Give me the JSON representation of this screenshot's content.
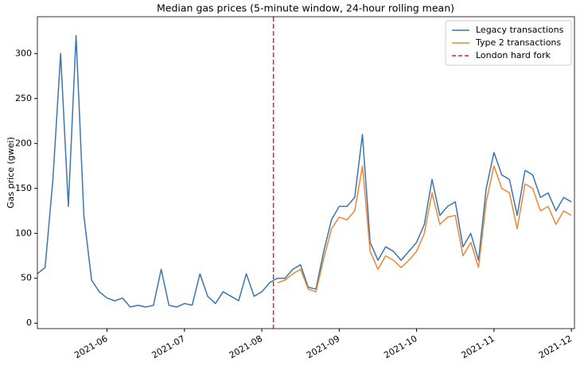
{
  "chart_data": {
    "type": "line",
    "title": "Median gas prices (5-minute window, 24-hour rolling mean)",
    "y_label": "Gas price (gwei)",
    "x": [
      5.1,
      5.2,
      5.3,
      5.4,
      5.5,
      5.6,
      5.7,
      5.8,
      5.9,
      6.0,
      6.1,
      6.2,
      6.3,
      6.4,
      6.5,
      6.6,
      6.7,
      6.8,
      6.9,
      7.0,
      7.1,
      7.2,
      7.3,
      7.4,
      7.5,
      7.6,
      7.7,
      7.8,
      7.9,
      8.0,
      8.1,
      8.2,
      8.3,
      8.4,
      8.5,
      8.6,
      8.7,
      8.8,
      8.9,
      9.0,
      9.1,
      9.2,
      9.3,
      9.4,
      9.5,
      9.6,
      9.7,
      9.8,
      9.9,
      10.0,
      10.1,
      10.2,
      10.3,
      10.4,
      10.5,
      10.6,
      10.7,
      10.8,
      10.9,
      11.0,
      11.1,
      11.2,
      11.3,
      11.4,
      11.5,
      11.6,
      11.7,
      11.8,
      11.9,
      12.0
    ],
    "series": [
      {
        "name": "Legacy transactions",
        "color": "#3a76af",
        "values": [
          55,
          62,
          160,
          300,
          130,
          320,
          120,
          48,
          35,
          28,
          25,
          28,
          18,
          20,
          18,
          20,
          60,
          20,
          18,
          22,
          20,
          55,
          30,
          22,
          35,
          30,
          25,
          55,
          30,
          35,
          45,
          50,
          50,
          60,
          65,
          40,
          38,
          80,
          115,
          130,
          130,
          140,
          210,
          90,
          70,
          85,
          80,
          70,
          80,
          90,
          110,
          160,
          120,
          130,
          135,
          85,
          100,
          70,
          150,
          190,
          165,
          160,
          120,
          170,
          165,
          140,
          145,
          125,
          140,
          135
        ]
      },
      {
        "name": "Type 2 transactions",
        "color": "#ef8636",
        "values": [
          null,
          null,
          null,
          null,
          null,
          null,
          null,
          null,
          null,
          null,
          null,
          null,
          null,
          null,
          null,
          null,
          null,
          null,
          null,
          null,
          null,
          null,
          null,
          null,
          null,
          null,
          null,
          null,
          null,
          null,
          null,
          45,
          48,
          55,
          60,
          38,
          35,
          72,
          105,
          118,
          115,
          125,
          175,
          80,
          60,
          75,
          70,
          62,
          70,
          80,
          100,
          145,
          110,
          118,
          120,
          75,
          90,
          62,
          135,
          175,
          150,
          145,
          105,
          155,
          150,
          125,
          130,
          110,
          125,
          120
        ]
      }
    ],
    "vline": {
      "x": 8.15,
      "name": "London hard fork",
      "color": "#d62728"
    },
    "xlim": [
      5.1,
      12.04
    ],
    "xticks": [
      {
        "value": 6,
        "label": "2021-06"
      },
      {
        "value": 7,
        "label": "2021-07"
      },
      {
        "value": 8,
        "label": "2021-08"
      },
      {
        "value": 9,
        "label": "2021-09"
      },
      {
        "value": 10,
        "label": "2021-10"
      },
      {
        "value": 11,
        "label": "2021-11"
      },
      {
        "value": 12,
        "label": "2021-12"
      }
    ],
    "ylim": [
      -6,
      341
    ],
    "yticks": [
      0,
      50,
      100,
      150,
      200,
      250,
      300
    ],
    "grid": false,
    "legend": "upper right"
  }
}
